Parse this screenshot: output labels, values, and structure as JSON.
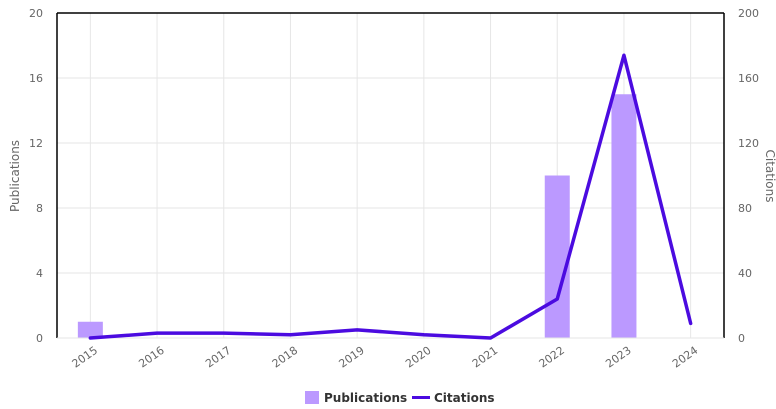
{
  "chart_data": {
    "type": "bar",
    "categories": [
      "2015",
      "2016",
      "2017",
      "2018",
      "2019",
      "2020",
      "2021",
      "2022",
      "2023",
      "2024"
    ],
    "series": [
      {
        "name": "Publications",
        "type": "bar",
        "axis": "left",
        "values": [
          1,
          0,
          0,
          0,
          0,
          0,
          0,
          10,
          15,
          0
        ]
      },
      {
        "name": "Citations",
        "type": "line",
        "axis": "right",
        "values": [
          0,
          3,
          3,
          2,
          5,
          2,
          0,
          24,
          174,
          9
        ]
      }
    ],
    "ylabel": "Publications",
    "ylabel_right": "Citations",
    "ylim": [
      0,
      20
    ],
    "ylim_right": [
      0,
      200
    ],
    "yticks": [
      "0",
      "4",
      "8",
      "12",
      "16",
      "20"
    ],
    "yticks_right": [
      "0",
      "40",
      "80",
      "120",
      "160",
      "200"
    ],
    "grid": true,
    "legend_position": "bottom-center",
    "colors": {
      "Publications": "#bb99ff",
      "Citations": "#4b0be0"
    }
  }
}
